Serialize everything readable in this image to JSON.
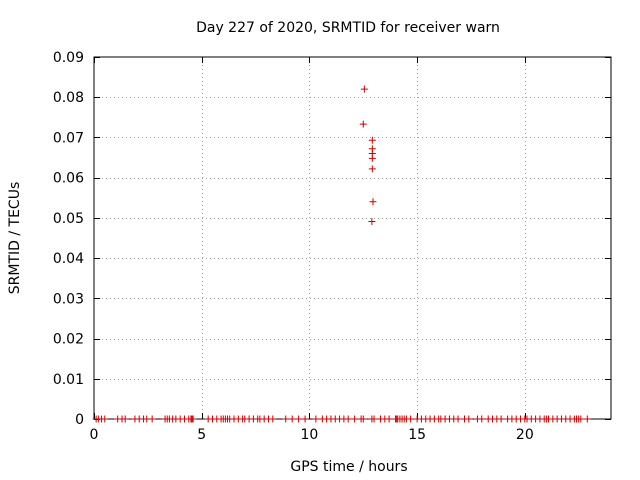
{
  "chart_data": {
    "type": "scatter",
    "title": "Day 227 of 2020, SRMTID for receiver warn",
    "xlabel": "GPS time / hours",
    "ylabel": "SRMTID / TECUs",
    "xlim": [
      0,
      24
    ],
    "ylim": [
      0,
      0.09
    ],
    "x_ticks": [
      0,
      5,
      10,
      15,
      20
    ],
    "x_tick_labels": [
      "0",
      "5",
      "10",
      "15",
      "20"
    ],
    "y_ticks": [
      0,
      0.01,
      0.02,
      0.03,
      0.04,
      0.05,
      0.06,
      0.07,
      0.08,
      0.09
    ],
    "y_tick_labels": [
      "0",
      "0.01",
      "0.02",
      "0.03",
      "0.04",
      "0.05",
      "0.06",
      "0.07",
      "0.08",
      "0.09"
    ],
    "grid": true,
    "marker": "+",
    "series": [
      {
        "name": "SRMTID",
        "color": "#cc0000",
        "points": [
          [
            12.55,
            0.082
          ],
          [
            12.5,
            0.0733
          ],
          [
            12.92,
            0.0693
          ],
          [
            12.92,
            0.0672
          ],
          [
            12.92,
            0.066
          ],
          [
            12.92,
            0.0648
          ],
          [
            12.92,
            0.0622
          ],
          [
            12.95,
            0.054
          ],
          [
            12.9,
            0.0491
          ],
          [
            0.1,
            0
          ],
          [
            0.2,
            0
          ],
          [
            0.35,
            0
          ],
          [
            0.5,
            0
          ],
          [
            1.1,
            0
          ],
          [
            1.3,
            0
          ],
          [
            1.45,
            0
          ],
          [
            1.9,
            0
          ],
          [
            2.1,
            0
          ],
          [
            2.3,
            0
          ],
          [
            2.45,
            0
          ],
          [
            2.7,
            0
          ],
          [
            3.3,
            0
          ],
          [
            3.4,
            0
          ],
          [
            3.5,
            0
          ],
          [
            3.65,
            0
          ],
          [
            3.8,
            0
          ],
          [
            4.0,
            0
          ],
          [
            4.2,
            0
          ],
          [
            4.4,
            0
          ],
          [
            4.5,
            0
          ],
          [
            4.55,
            0
          ],
          [
            4.6,
            0
          ],
          [
            5.3,
            0
          ],
          [
            5.5,
            0
          ],
          [
            5.7,
            0
          ],
          [
            5.9,
            0
          ],
          [
            6.0,
            0
          ],
          [
            6.1,
            0
          ],
          [
            6.2,
            0
          ],
          [
            6.3,
            0
          ],
          [
            6.5,
            0
          ],
          [
            6.7,
            0
          ],
          [
            6.9,
            0
          ],
          [
            7.0,
            0
          ],
          [
            7.2,
            0
          ],
          [
            7.4,
            0
          ],
          [
            7.6,
            0
          ],
          [
            7.7,
            0
          ],
          [
            7.9,
            0
          ],
          [
            8.1,
            0
          ],
          [
            8.3,
            0
          ],
          [
            8.9,
            0
          ],
          [
            9.2,
            0
          ],
          [
            9.5,
            0
          ],
          [
            9.8,
            0
          ],
          [
            10.3,
            0
          ],
          [
            10.6,
            0
          ],
          [
            10.8,
            0
          ],
          [
            11.0,
            0
          ],
          [
            11.2,
            0
          ],
          [
            11.4,
            0
          ],
          [
            11.6,
            0
          ],
          [
            11.8,
            0
          ],
          [
            12.1,
            0
          ],
          [
            12.4,
            0
          ],
          [
            12.5,
            0
          ],
          [
            12.9,
            0
          ],
          [
            13.0,
            0
          ],
          [
            13.3,
            0
          ],
          [
            13.5,
            0
          ],
          [
            13.7,
            0
          ],
          [
            14.0,
            0
          ],
          [
            14.05,
            0
          ],
          [
            14.1,
            0
          ],
          [
            14.2,
            0
          ],
          [
            14.3,
            0
          ],
          [
            14.4,
            0
          ],
          [
            14.5,
            0
          ],
          [
            14.7,
            0
          ],
          [
            15.0,
            0
          ],
          [
            15.2,
            0
          ],
          [
            15.4,
            0
          ],
          [
            15.6,
            0
          ],
          [
            15.8,
            0
          ],
          [
            16.0,
            0
          ],
          [
            16.1,
            0
          ],
          [
            16.3,
            0
          ],
          [
            16.5,
            0
          ],
          [
            16.7,
            0
          ],
          [
            16.9,
            0
          ],
          [
            17.2,
            0
          ],
          [
            17.4,
            0
          ],
          [
            17.8,
            0
          ],
          [
            18.0,
            0
          ],
          [
            18.3,
            0
          ],
          [
            18.5,
            0
          ],
          [
            18.7,
            0
          ],
          [
            18.9,
            0
          ],
          [
            19.2,
            0
          ],
          [
            19.4,
            0
          ],
          [
            19.6,
            0
          ],
          [
            19.8,
            0
          ],
          [
            20.0,
            0
          ],
          [
            20.1,
            0
          ],
          [
            20.3,
            0
          ],
          [
            20.5,
            0
          ],
          [
            20.7,
            0
          ],
          [
            20.9,
            0
          ],
          [
            21.0,
            0
          ],
          [
            21.1,
            0
          ],
          [
            21.3,
            0
          ],
          [
            21.5,
            0
          ],
          [
            21.7,
            0
          ],
          [
            21.9,
            0
          ],
          [
            22.1,
            0
          ],
          [
            22.3,
            0
          ],
          [
            22.4,
            0
          ],
          [
            22.5,
            0
          ],
          [
            22.6,
            0
          ],
          [
            22.9,
            0
          ]
        ]
      }
    ]
  }
}
